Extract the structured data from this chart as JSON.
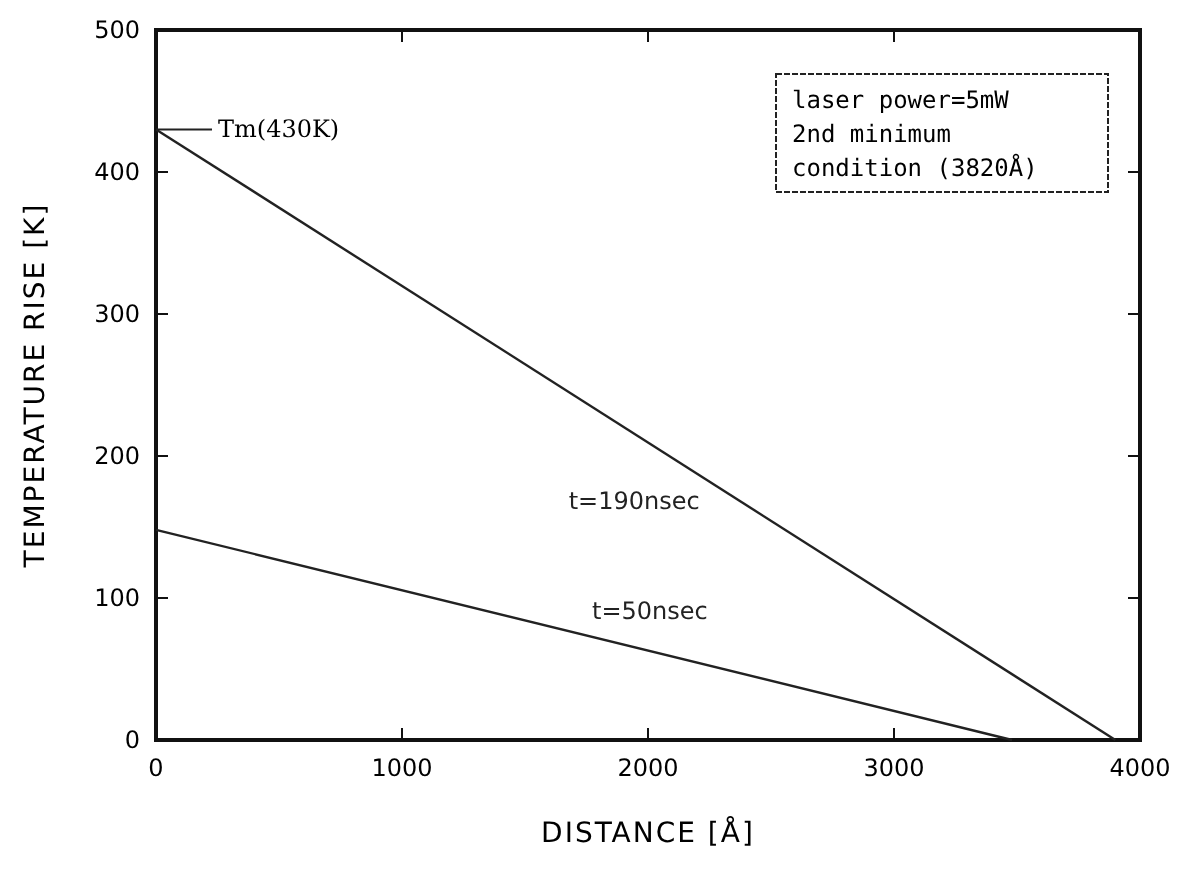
{
  "chart_data": {
    "type": "line",
    "xlabel": "DISTANCE [Å]",
    "ylabel": "TEMPERATURE RISE [K]",
    "xlim": [
      0,
      4000
    ],
    "ylim": [
      0,
      500
    ],
    "xticks": [
      0,
      1000,
      2000,
      3000,
      4000
    ],
    "yticks": [
      0,
      100,
      200,
      300,
      400,
      500
    ],
    "grid": false,
    "marker": "none",
    "line_style": "solid",
    "series": [
      {
        "name": "t=190nsec",
        "color": "#222222",
        "x": [
          0,
          3900
        ],
        "values": [
          430,
          0
        ]
      },
      {
        "name": "t=50nsec",
        "color": "#222222",
        "x": [
          0,
          3480
        ],
        "values": [
          148,
          0
        ]
      }
    ],
    "annotations": [
      {
        "text": "Tm(430K)",
        "x": 0,
        "y": 430
      },
      "laser power=5mW\n2nd minimum\ncondition (3820Å)"
    ]
  }
}
